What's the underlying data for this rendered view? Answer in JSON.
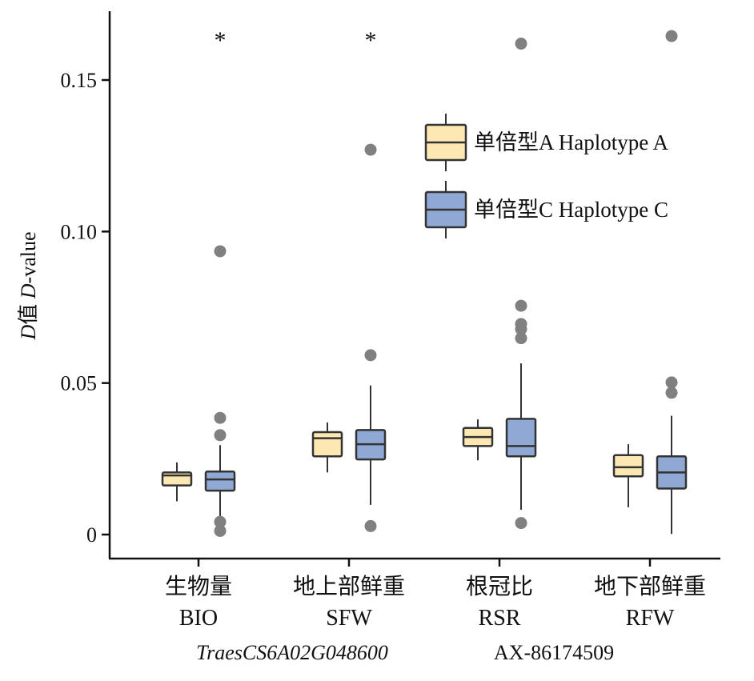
{
  "chart_data": {
    "type": "box",
    "ylabel": {
      "prefix": "D",
      "cn": "值 ",
      "prefix2": "D",
      "suffix": "-value"
    },
    "ylim": [
      -0.008,
      0.172
    ],
    "yticks": [
      {
        "value": 0,
        "label": "0"
      },
      {
        "value": 0.05,
        "label": "0.05"
      },
      {
        "value": 0.1,
        "label": "0.10"
      },
      {
        "value": 0.15,
        "label": "0.15"
      }
    ],
    "categories": [
      {
        "cn": "生物量",
        "en": "BIO",
        "significance": "*"
      },
      {
        "cn": "地上部鲜重",
        "en": "SFW",
        "significance": "*"
      },
      {
        "cn": "根冠比",
        "en": "RSR",
        "significance": ""
      },
      {
        "cn": "地下部鲜重",
        "en": "RFW",
        "significance": ""
      }
    ],
    "series": [
      {
        "name": "单倍型A Haplotype A",
        "color": "#fde7b3",
        "boxes": [
          {
            "min": 0.011,
            "q1": 0.0162,
            "median": 0.0195,
            "q3": 0.0205,
            "max": 0.0238,
            "outliers": []
          },
          {
            "min": 0.0205,
            "q1": 0.0258,
            "median": 0.0318,
            "q3": 0.0338,
            "max": 0.037,
            "outliers": []
          },
          {
            "min": 0.0245,
            "q1": 0.0292,
            "median": 0.0322,
            "q3": 0.0352,
            "max": 0.038,
            "outliers": []
          },
          {
            "min": 0.009,
            "q1": 0.0192,
            "median": 0.0222,
            "q3": 0.0262,
            "max": 0.0298,
            "outliers": []
          }
        ]
      },
      {
        "name": "单倍型C Haplotype C",
        "color": "#8fa8d4",
        "boxes": [
          {
            "min": 0.0052,
            "q1": 0.0145,
            "median": 0.0182,
            "q3": 0.0208,
            "max": 0.0295,
            "outliers": [
              0.0935,
              0.0385,
              0.0328,
              0.0042,
              0.0012
            ]
          },
          {
            "min": 0.0098,
            "q1": 0.0248,
            "median": 0.0298,
            "q3": 0.0345,
            "max": 0.0492,
            "outliers": [
              0.127,
              0.0592,
              0.0028
            ]
          },
          {
            "min": 0.0082,
            "q1": 0.0258,
            "median": 0.0292,
            "q3": 0.0382,
            "max": 0.0565,
            "outliers": [
              0.162,
              0.0755,
              0.0695,
              0.0678,
              0.0648,
              0.0038
            ]
          },
          {
            "min": 0.0002,
            "q1": 0.0152,
            "median": 0.0205,
            "q3": 0.0258,
            "max": 0.0392,
            "outliers": [
              0.1645,
              0.0502,
              0.0468
            ]
          }
        ]
      }
    ],
    "outlier_color": "#808080",
    "footer": {
      "gene": "TraesCS6A02G048600",
      "marker": "AX-86174509"
    },
    "legend_position": "top-right"
  }
}
